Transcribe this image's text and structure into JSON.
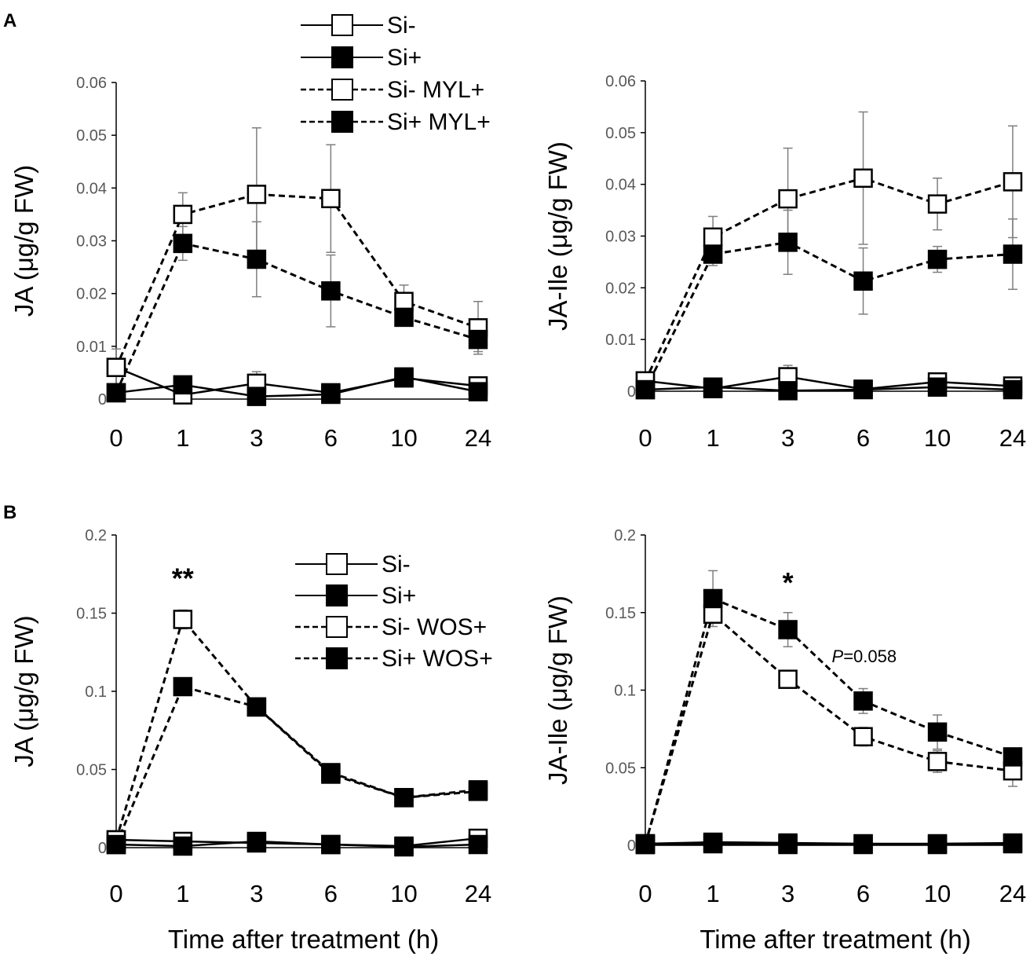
{
  "panel_labels": [
    "A",
    "B"
  ],
  "legend_A": [
    "Si-",
    "Si+",
    "Si- MYL+",
    "Si+ MYL+"
  ],
  "legend_B": [
    "Si-",
    "Si+",
    "Si- WOS+",
    "Si+ WOS+"
  ],
  "chart_data": [
    {
      "type": "line",
      "panel": "A",
      "title": "",
      "xlabel": "",
      "ylabel": "JA  (μg/g FW)",
      "categories": [
        "0",
        "1",
        "3",
        "6",
        "10",
        "24"
      ],
      "ylim": [
        0,
        0.06
      ],
      "yticks": [
        0,
        0.01,
        0.02,
        0.03,
        0.04,
        0.05,
        0.06
      ],
      "ytick_labels": [
        "0",
        "0.01",
        "0.02",
        "0.03",
        "0.04",
        "0.05",
        "0.06"
      ],
      "series": [
        {
          "name": "Si-",
          "dashed": false,
          "filled": false,
          "values": [
            0.006,
            0.0008,
            0.003,
            0.0012,
            0.004,
            0.0025
          ],
          "errors": [
            0,
            0,
            0.0022,
            0,
            0,
            0
          ]
        },
        {
          "name": "Si+",
          "dashed": false,
          "filled": true,
          "values": [
            0.0012,
            0.0027,
            0.0005,
            0.0009,
            0.0042,
            0.0014
          ],
          "errors": [
            0,
            0,
            0,
            0,
            0,
            0
          ]
        },
        {
          "name": "Si- MYL+",
          "dashed": true,
          "filled": false,
          "values": [
            0.006,
            0.035,
            0.0388,
            0.038,
            0.0185,
            0.0135
          ],
          "errors": [
            0.0035,
            0.0041,
            0.0126,
            0.0102,
            0.0031,
            0.005
          ]
        },
        {
          "name": "Si+ MYL+",
          "dashed": true,
          "filled": true,
          "values": [
            0.0012,
            0.0295,
            0.0265,
            0.0205,
            0.0155,
            0.0113
          ],
          "errors": [
            0,
            0.0032,
            0.0071,
            0.0068,
            0,
            0.0023
          ]
        }
      ],
      "annotations": []
    },
    {
      "type": "line",
      "panel": "A",
      "title": "",
      "xlabel": "",
      "ylabel": "JA-Ile (μg/g FW)",
      "categories": [
        "0",
        "1",
        "3",
        "6",
        "10",
        "24"
      ],
      "ylim": [
        0,
        0.06
      ],
      "yticks": [
        0,
        0.01,
        0.02,
        0.03,
        0.04,
        0.05,
        0.06
      ],
      "ytick_labels": [
        "0",
        "0.01",
        "0.02",
        "0.03",
        "0.04",
        "0.05",
        "0.06"
      ],
      "series": [
        {
          "name": "Si-",
          "dashed": false,
          "filled": false,
          "values": [
            0.002,
            0.0005,
            0.0028,
            0.0004,
            0.0018,
            0.001
          ],
          "errors": [
            0,
            0,
            0.0022,
            0,
            0,
            0
          ]
        },
        {
          "name": "Si+",
          "dashed": false,
          "filled": true,
          "values": [
            0.0003,
            0.0008,
            0.0001,
            0.0003,
            0.0008,
            0.0003
          ],
          "errors": [
            0,
            0,
            0,
            0,
            0,
            0
          ]
        },
        {
          "name": "Si- MYL+",
          "dashed": true,
          "filled": false,
          "values": [
            0.002,
            0.0298,
            0.0372,
            0.0412,
            0.0362,
            0.0405
          ],
          "errors": [
            0,
            0.004,
            0.0098,
            0.0128,
            0.005,
            0.0108
          ]
        },
        {
          "name": "Si+ MYL+",
          "dashed": true,
          "filled": true,
          "values": [
            0.0003,
            0.0265,
            0.0288,
            0.0213,
            0.0255,
            0.0265
          ],
          "errors": [
            0,
            0.0022,
            0.0062,
            0.0064,
            0.0025,
            0.0068
          ]
        }
      ],
      "annotations": []
    },
    {
      "type": "line",
      "panel": "B",
      "title": "",
      "xlabel": "Time after treatment (h)",
      "ylabel": "JA  (μg/g FW)",
      "categories": [
        "0",
        "1",
        "3",
        "6",
        "10",
        "24"
      ],
      "ylim": [
        0,
        0.2
      ],
      "yticks": [
        0,
        0.05,
        0.1,
        0.15,
        0.2
      ],
      "ytick_labels": [
        "0",
        "0.05",
        "0.1",
        "0.15",
        "0.2"
      ],
      "series": [
        {
          "name": "Si-",
          "dashed": false,
          "filled": false,
          "values": [
            0.005,
            0.004,
            0.003,
            0.002,
            0.001,
            0.006
          ],
          "errors": [
            0,
            0,
            0,
            0,
            0,
            0
          ]
        },
        {
          "name": "Si+",
          "dashed": false,
          "filled": true,
          "values": [
            0.002,
            0.001,
            0.004,
            0.002,
            0.0005,
            0.002
          ],
          "errors": [
            0,
            0,
            0,
            0,
            0,
            0
          ]
        },
        {
          "name": "Si- WOS+",
          "dashed": true,
          "filled": false,
          "values": [
            0.005,
            0.146,
            0.09,
            0.047,
            0.032,
            0.036
          ],
          "errors": [
            0,
            0.006,
            0.003,
            0.003,
            0.002,
            0.003
          ]
        },
        {
          "name": "Si+ WOS+",
          "dashed": true,
          "filled": true,
          "values": [
            0.002,
            0.103,
            0.09,
            0.048,
            0.032,
            0.037
          ],
          "errors": [
            0,
            0.005,
            0.003,
            0.003,
            0.002,
            0.003
          ]
        }
      ],
      "annotations": [
        {
          "text": "**",
          "category": "1",
          "y": 0.166
        }
      ]
    },
    {
      "type": "line",
      "panel": "B",
      "title": "",
      "xlabel": "Time after treatment (h)",
      "ylabel": "JA-Ile (μg/g FW)",
      "categories": [
        "0",
        "1",
        "3",
        "6",
        "10",
        "24"
      ],
      "ylim": [
        0,
        0.2
      ],
      "yticks": [
        0,
        0.05,
        0.1,
        0.15,
        0.2
      ],
      "ytick_labels": [
        "0",
        "0.05",
        "0.1",
        "0.15",
        "0.2"
      ],
      "series": [
        {
          "name": "Si-",
          "dashed": false,
          "filled": false,
          "values": [
            0.001,
            0.002,
            0.0015,
            0.001,
            0.001,
            0.0015
          ],
          "errors": [
            0,
            0,
            0,
            0,
            0,
            0
          ]
        },
        {
          "name": "Si+",
          "dashed": false,
          "filled": true,
          "values": [
            0.0005,
            0.001,
            0.0005,
            0.0005,
            0.0005,
            0.001
          ],
          "errors": [
            0,
            0,
            0,
            0,
            0,
            0
          ]
        },
        {
          "name": "Si- WOS+",
          "dashed": true,
          "filled": false,
          "values": [
            0.001,
            0.149,
            0.107,
            0.07,
            0.054,
            0.048
          ],
          "errors": [
            0,
            0,
            0,
            0.006,
            0.007,
            0.01
          ]
        },
        {
          "name": "Si+ WOS+",
          "dashed": true,
          "filled": true,
          "values": [
            0.0005,
            0.159,
            0.139,
            0.093,
            0.073,
            0.057
          ],
          "errors": [
            0,
            0.018,
            0.011,
            0.008,
            0.011,
            0
          ]
        }
      ],
      "annotations": [
        {
          "text": "*",
          "category": "3",
          "y": 0.163
        },
        {
          "text_italic": "P",
          "text": "=0.058",
          "category": "6",
          "y": 0.118
        }
      ]
    }
  ]
}
